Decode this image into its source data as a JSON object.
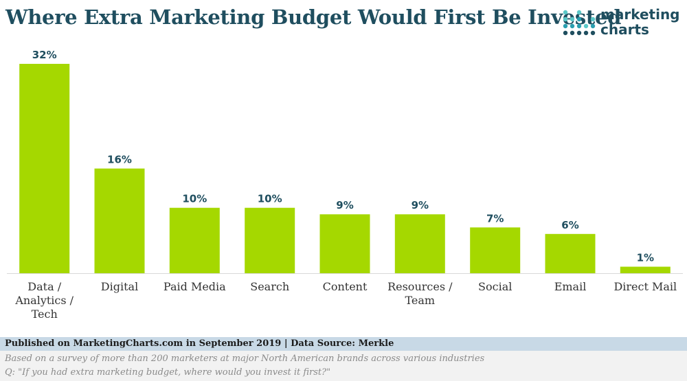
{
  "chart_data": {
    "type": "bar",
    "title": "Where Extra Marketing Budget Would First Be Invested",
    "categories": [
      [
        "Data /",
        "Analytics /",
        "Tech"
      ],
      [
        "Digital"
      ],
      [
        "Paid Media"
      ],
      [
        "Search"
      ],
      [
        "Content"
      ],
      [
        "Resources /",
        "Team"
      ],
      [
        "Social"
      ],
      [
        "Email"
      ],
      [
        "Direct Mail"
      ]
    ],
    "values": [
      32,
      16,
      10,
      10,
      9,
      9,
      7,
      6,
      1
    ],
    "value_suffix": "%",
    "ylim": [
      0,
      32
    ],
    "xlabel": "",
    "ylabel": "",
    "grid": false,
    "colors": {
      "bar": "#a5d800",
      "label": "#1f4e5f"
    }
  },
  "logo": {
    "line1": "marketing",
    "line2": "charts"
  },
  "footer": {
    "source": "Published on MarketingCharts.com in September 2019 | Data Source: Merkle",
    "note1": "Based on a survey of more than 200 marketers at major North American brands across various industries",
    "note2": "Q: \"If you had extra marketing budget, where would you invest it first?\""
  }
}
